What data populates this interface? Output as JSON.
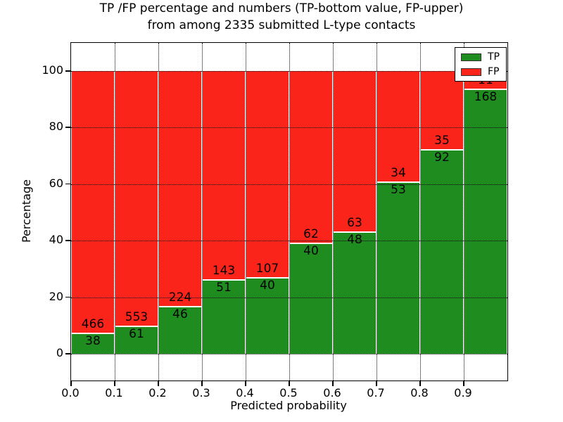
{
  "figure": {
    "title_line1": "TP /FP percentage and numbers (TP-bottom value, FP-upper)",
    "title_line2": "from among 2335 submitted L-type contacts"
  },
  "axes": {
    "xlabel": "Predicted probability",
    "ylabel": "Percentage",
    "x_tick_labels": [
      "0.0",
      "0.1",
      "0.2",
      "0.3",
      "0.4",
      "0.5",
      "0.6",
      "0.7",
      "0.8",
      "0.9"
    ],
    "y_tick_labels": [
      "0",
      "20",
      "40",
      "60",
      "80",
      "100"
    ],
    "y_tick_values": [
      0,
      20,
      40,
      60,
      80,
      100
    ]
  },
  "legend": {
    "position": "upper right",
    "items": [
      {
        "label": "TP",
        "color": "#1e8c1e"
      },
      {
        "label": "FP",
        "color": "#fb241a"
      }
    ]
  },
  "chart_data": {
    "type": "bar",
    "stacked": true,
    "normalized_each_bar_to_percent": true,
    "title": "TP /FP percentage and numbers (TP-bottom value, FP-upper) from among 2335 submitted L-type contacts",
    "xlabel": "Predicted probability",
    "ylabel": "Percentage",
    "total_contacts": 2335,
    "bin_width": 0.1,
    "categories": [
      "0.0",
      "0.1",
      "0.2",
      "0.3",
      "0.4",
      "0.5",
      "0.6",
      "0.7",
      "0.8",
      "0.9"
    ],
    "series": [
      {
        "name": "TP",
        "color": "#1e8c1e",
        "counts": [
          38,
          61,
          46,
          51,
          40,
          40,
          48,
          53,
          92,
          168
        ]
      },
      {
        "name": "FP",
        "color": "#fb241a",
        "counts": [
          466,
          553,
          224,
          143,
          107,
          62,
          63,
          34,
          35,
          11
        ]
      }
    ],
    "tp_percent_of_bin": [
      7.5,
      9.9,
      17.0,
      26.3,
      27.2,
      39.2,
      43.2,
      60.9,
      72.4,
      93.9
    ],
    "xlim": [
      0.0,
      1.0
    ],
    "ylim": [
      0,
      100
    ],
    "grid": "dotted",
    "legend_position": "upper right"
  }
}
